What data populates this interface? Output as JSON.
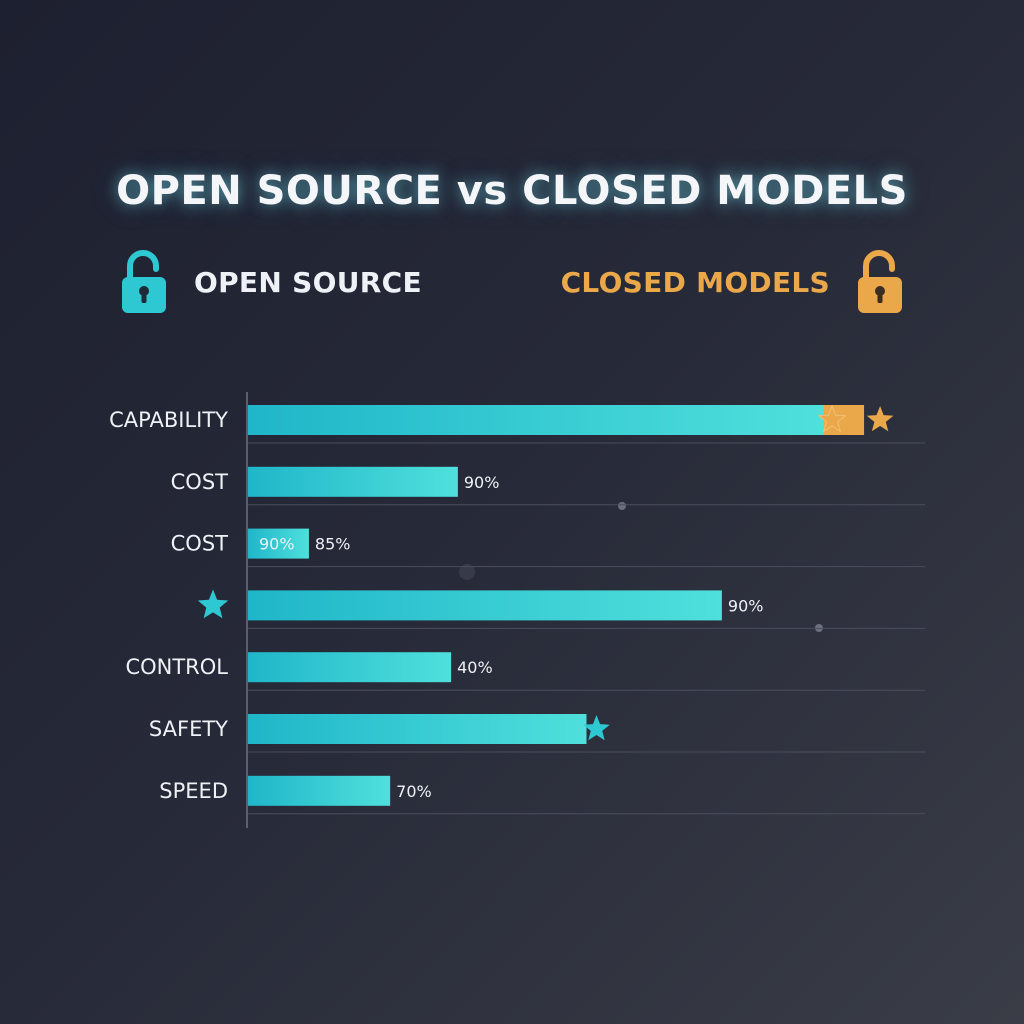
{
  "title": "OPEN SOURCE vs CLOSED MODELS",
  "legend": {
    "open_label": "OPEN SOURCE",
    "closed_label": "CLOSED MODELS",
    "open_icon": "unlocked-padlock-icon",
    "closed_icon": "unlocked-padlock-icon",
    "open_color": "#2ec8d3",
    "closed_color": "#eaa84a"
  },
  "chart_data": {
    "type": "bar",
    "orientation": "horizontal",
    "categories": [
      "CAPABILITY",
      "COST",
      "COST",
      "",
      "CONTROL",
      "SAFETY",
      "SPEED"
    ],
    "category_icons": [
      null,
      null,
      null,
      "star-icon",
      null,
      null,
      null
    ],
    "series": [
      {
        "name": "OPEN SOURCE",
        "color": "#2ec8d3",
        "values": [
          85,
          31,
          9,
          70,
          30,
          50,
          21
        ]
      },
      {
        "name": "CLOSED MODELS",
        "color": "#eaa84a",
        "values": [
          91,
          null,
          null,
          null,
          null,
          null,
          null
        ]
      }
    ],
    "value_labels": [
      "",
      "90%",
      "85%",
      "90%",
      "40%",
      "",
      "70%"
    ],
    "inner_labels": [
      "",
      "",
      "90%",
      "",
      "",
      "",
      ""
    ],
    "star_markers": [
      {
        "row": 0,
        "color": "#eaa84a"
      },
      {
        "row": 0,
        "color": "#eaa84a"
      },
      {
        "row": 5,
        "color": "#2ec8d3"
      }
    ],
    "xlim": [
      0,
      100
    ],
    "grid": true
  }
}
